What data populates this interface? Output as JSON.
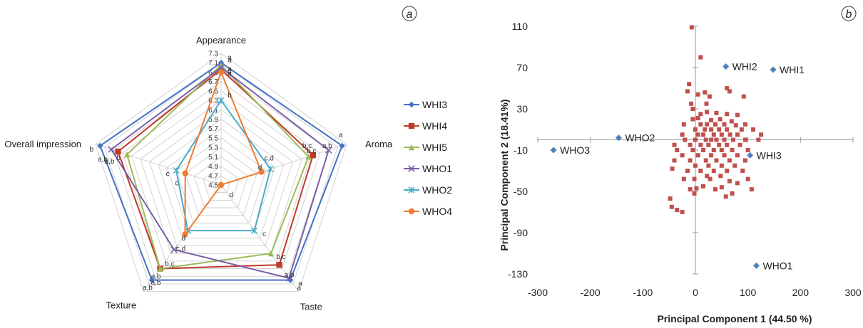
{
  "radar": {
    "panel_label": "a",
    "axes": [
      "Appearance",
      "Aroma",
      "Taste",
      "Texture",
      "Overall impression"
    ],
    "scale_ticks": [
      "7.3",
      "7.1",
      "6.9",
      "6.7",
      "6.5",
      "6.3",
      "6.1",
      "5.9",
      "5.7",
      "5.5",
      "5.3",
      "5.1",
      "4.9",
      "4.7",
      "4.5"
    ],
    "range": [
      4.5,
      7.3
    ],
    "series": [
      {
        "name": "WHI3",
        "color": "#4472c4",
        "marker": "diamond",
        "values": [
          7.1,
          7.2,
          7.0,
          7.0,
          7.2
        ]
      },
      {
        "name": "WHI4",
        "color": "#c0392b",
        "marker": "square",
        "values": [
          6.96,
          6.55,
          6.6,
          6.7,
          6.8
        ]
      },
      {
        "name": "WHI5",
        "color": "#9bbb59",
        "marker": "triangle",
        "values": [
          7.05,
          6.45,
          6.3,
          6.7,
          6.6
        ]
      },
      {
        "name": "WHO1",
        "color": "#7b5ea7",
        "marker": "x",
        "values": [
          7.0,
          6.9,
          6.95,
          6.2,
          6.95
        ]
      },
      {
        "name": "WHO2",
        "color": "#4bacc6",
        "marker": "star",
        "values": [
          6.3,
          5.6,
          5.7,
          5.7,
          5.5
        ]
      },
      {
        "name": "WHO4",
        "color": "#ed7d31",
        "marker": "circle",
        "values": [
          6.9,
          5.4,
          4.5,
          5.8,
          5.3
        ]
      }
    ],
    "annotations": [
      [
        "a",
        "a",
        "a",
        "a,b",
        "b"
      ],
      [
        "a",
        "b,c",
        "a,b",
        "a,b",
        "a,b"
      ],
      [
        "a",
        "b,c",
        "b,c",
        "a,b",
        "b"
      ],
      [
        "a",
        "a,b",
        "a",
        "b,c",
        "a,b"
      ],
      [
        "b",
        "c,d",
        "c",
        "d",
        "c"
      ],
      [
        "a",
        "d",
        "d",
        "c,d",
        "c"
      ]
    ]
  },
  "chart_data": [
    {
      "type": "radar",
      "categories": [
        "Appearance",
        "Aroma",
        "Taste",
        "Texture",
        "Overall impression"
      ],
      "range": [
        4.5,
        7.3
      ],
      "series": [
        {
          "name": "WHI3",
          "values": [
            7.1,
            7.2,
            7.0,
            7.0,
            7.2
          ]
        },
        {
          "name": "WHI4",
          "values": [
            6.96,
            6.55,
            6.6,
            6.7,
            6.8
          ]
        },
        {
          "name": "WHI5",
          "values": [
            7.05,
            6.45,
            6.3,
            6.7,
            6.6
          ]
        },
        {
          "name": "WHO1",
          "values": [
            7.0,
            6.9,
            6.95,
            6.2,
            6.95
          ]
        },
        {
          "name": "WHO2",
          "values": [
            6.3,
            5.6,
            5.7,
            5.7,
            5.5
          ]
        },
        {
          "name": "WHO4",
          "values": [
            6.9,
            5.4,
            4.5,
            5.8,
            5.3
          ]
        }
      ],
      "legend": "right"
    },
    {
      "type": "scatter",
      "xlabel": "Principal Component 1 (44.50 %)",
      "ylabel": "Principal Component 2 (18.41%)",
      "xlim": [
        -300,
        300
      ],
      "ylim": [
        -130,
        110
      ],
      "xticks": [
        "-300",
        "-200",
        "-100",
        "0",
        "100",
        "200",
        "300"
      ],
      "yticks": [
        "110",
        "70",
        "30",
        "-10",
        "-50",
        "-90",
        "-130"
      ],
      "labeled_points": [
        {
          "label": "WHI2",
          "x": 58,
          "y": 71
        },
        {
          "label": "WHI1",
          "x": 148,
          "y": 68
        },
        {
          "label": "WHO2",
          "x": -146,
          "y": 2
        },
        {
          "label": "WHO3",
          "x": -270,
          "y": -10
        },
        {
          "label": "WHI3",
          "x": 104,
          "y": -15
        },
        {
          "label": "WHO1",
          "x": 116,
          "y": -122
        }
      ],
      "point_color_labeled": "#4f81bd",
      "point_color_attributes": "#c0504d",
      "attribute_points": [
        [
          -7,
          109
        ],
        [
          10,
          80
        ],
        [
          -12,
          54
        ],
        [
          60,
          50
        ],
        [
          -15,
          47
        ],
        [
          18,
          46
        ],
        [
          65,
          47
        ],
        [
          5,
          44
        ],
        [
          27,
          42
        ],
        [
          92,
          42
        ],
        [
          -8,
          35
        ],
        [
          21,
          35
        ],
        [
          -5,
          30
        ],
        [
          22,
          27
        ],
        [
          10,
          25
        ],
        [
          40,
          26
        ],
        [
          60,
          25
        ],
        [
          80,
          24
        ],
        [
          -5,
          20
        ],
        [
          5,
          21
        ],
        [
          30,
          19
        ],
        [
          47,
          20
        ],
        [
          69,
          18
        ],
        [
          -22,
          15
        ],
        [
          10,
          15
        ],
        [
          22,
          15
        ],
        [
          38,
          15
        ],
        [
          55,
          15
        ],
        [
          77,
          14
        ],
        [
          95,
          15
        ],
        [
          0,
          10
        ],
        [
          18,
          10
        ],
        [
          30,
          10
        ],
        [
          45,
          10
        ],
        [
          60,
          10
        ],
        [
          88,
          10
        ],
        [
          110,
          10
        ],
        [
          -25,
          5
        ],
        [
          5,
          5
        ],
        [
          15,
          5
        ],
        [
          35,
          5
        ],
        [
          50,
          5
        ],
        [
          66,
          5
        ],
        [
          80,
          5
        ],
        [
          125,
          5
        ],
        [
          -20,
          0
        ],
        [
          0,
          0
        ],
        [
          20,
          0
        ],
        [
          30,
          0
        ],
        [
          40,
          0
        ],
        [
          55,
          0
        ],
        [
          72,
          0
        ],
        [
          95,
          0
        ],
        [
          120,
          0
        ],
        [
          -40,
          -5
        ],
        [
          -10,
          -5
        ],
        [
          10,
          -5
        ],
        [
          25,
          -5
        ],
        [
          45,
          -5
        ],
        [
          60,
          -5
        ],
        [
          85,
          -5
        ],
        [
          -35,
          -10
        ],
        [
          -5,
          -10
        ],
        [
          15,
          -10
        ],
        [
          35,
          -10
        ],
        [
          50,
          -10
        ],
        [
          70,
          -10
        ],
        [
          100,
          -10
        ],
        [
          -25,
          -15
        ],
        [
          5,
          -15
        ],
        [
          30,
          -15
        ],
        [
          55,
          -15
        ],
        [
          80,
          -15
        ],
        [
          -40,
          -20
        ],
        [
          -10,
          -20
        ],
        [
          20,
          -20
        ],
        [
          40,
          -20
        ],
        [
          65,
          -20
        ],
        [
          95,
          -20
        ],
        [
          0,
          -25
        ],
        [
          25,
          -25
        ],
        [
          50,
          -25
        ],
        [
          75,
          -25
        ],
        [
          -44,
          -28
        ],
        [
          -15,
          -30
        ],
        [
          10,
          -30
        ],
        [
          35,
          -30
        ],
        [
          60,
          -30
        ],
        [
          90,
          -30
        ],
        [
          22,
          -35
        ],
        [
          48,
          -35
        ],
        [
          -2,
          -38
        ],
        [
          -22,
          -38
        ],
        [
          28,
          -38
        ],
        [
          100,
          -38
        ],
        [
          65,
          -40
        ],
        [
          15,
          -45
        ],
        [
          50,
          -46
        ],
        [
          2,
          -47
        ],
        [
          -10,
          -48
        ],
        [
          38,
          -48
        ],
        [
          107,
          -48
        ],
        [
          -2,
          -52
        ],
        [
          70,
          -52
        ],
        [
          58,
          -55
        ],
        [
          -48,
          -57
        ],
        [
          -45,
          -65
        ],
        [
          -35,
          -68
        ],
        [
          -25,
          -70
        ],
        [
          80,
          -42
        ]
      ]
    }
  ],
  "scatter": {
    "panel_label": "b"
  }
}
